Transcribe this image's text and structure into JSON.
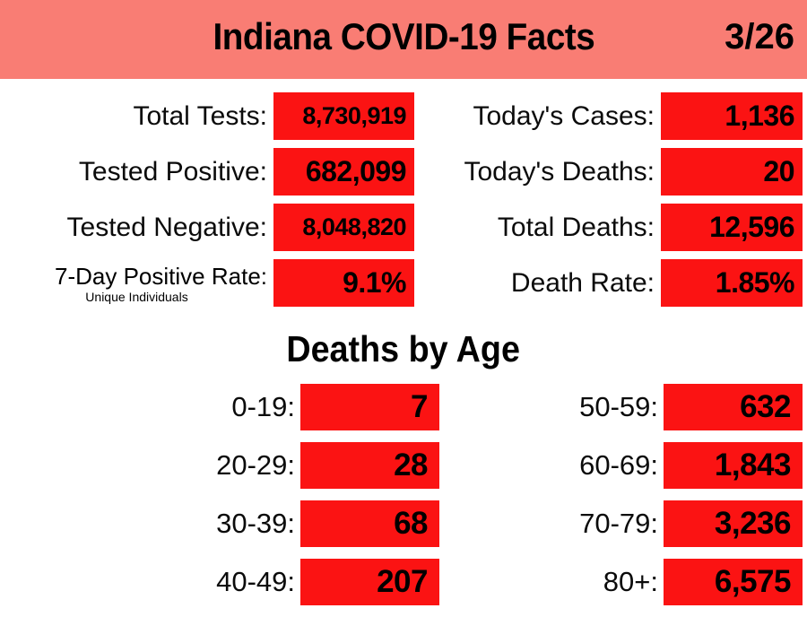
{
  "header": {
    "title": "Indiana COVID-19 Facts",
    "date": "3/26"
  },
  "colors": {
    "header_salmon": "#F97D74",
    "accent_red": "#FB1313",
    "text": "#000000"
  },
  "stats": {
    "left": [
      {
        "label": "Total Tests:",
        "value": "8,730,919"
      },
      {
        "label": "Tested Positive:",
        "value": "682,099"
      },
      {
        "label": "Tested Negative:",
        "value": "8,048,820"
      },
      {
        "label": "7-Day Positive Rate:",
        "sublabel": "Unique Individuals",
        "value": "9.1%"
      }
    ],
    "right": [
      {
        "label": "Today's Cases:",
        "value": "1,136"
      },
      {
        "label": "Today's Deaths:",
        "value": "20"
      },
      {
        "label": "Total Deaths:",
        "value": "12,596"
      },
      {
        "label": "Death Rate:",
        "value": "1.85%"
      }
    ]
  },
  "deaths_by_age": {
    "title": "Deaths by Age",
    "left": [
      {
        "label": "0-19:",
        "value": "7"
      },
      {
        "label": "20-29:",
        "value": "28"
      },
      {
        "label": "30-39:",
        "value": "68"
      },
      {
        "label": "40-49:",
        "value": "207"
      }
    ],
    "right": [
      {
        "label": "50-59:",
        "value": "632"
      },
      {
        "label": "60-69:",
        "value": "1,843"
      },
      {
        "label": "70-79:",
        "value": "3,236"
      },
      {
        "label": "80+:",
        "value": "6,575"
      }
    ]
  },
  "chart_data": [
    {
      "type": "table",
      "title": "Indiana COVID-19 Facts",
      "date": "3/26",
      "rows": [
        [
          "Total Tests",
          8730919
        ],
        [
          "Tested Positive",
          682099
        ],
        [
          "Tested Negative",
          8048820
        ],
        [
          "7-Day Positive Rate (Unique Individuals)",
          "9.1%"
        ],
        [
          "Today's Cases",
          1136
        ],
        [
          "Today's Deaths",
          20
        ],
        [
          "Total Deaths",
          12596
        ],
        [
          "Death Rate",
          "1.85%"
        ]
      ]
    },
    {
      "type": "table",
      "title": "Deaths by Age",
      "categories": [
        "0-19",
        "20-29",
        "30-39",
        "40-49",
        "50-59",
        "60-69",
        "70-79",
        "80+"
      ],
      "values": [
        7,
        28,
        68,
        207,
        632,
        1843,
        3236,
        6575
      ]
    }
  ]
}
